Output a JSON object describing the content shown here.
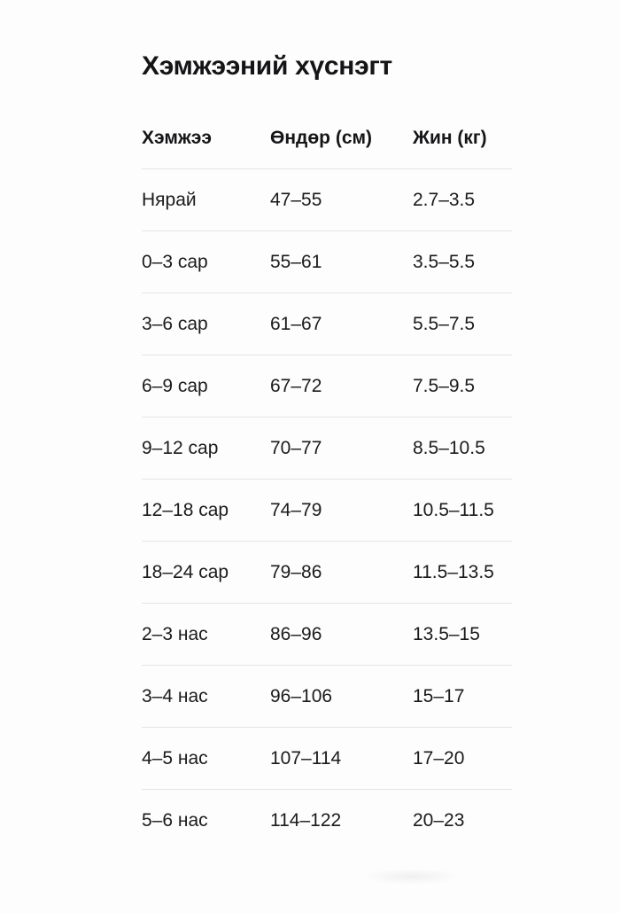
{
  "page": {
    "title": "Хэмжээний хүснэгт"
  },
  "table": {
    "columns": [
      "Хэмжээ",
      "Өндөр (см)",
      "Жин (кг)"
    ],
    "rows": [
      [
        "Нярай",
        "47–55",
        "2.7–3.5"
      ],
      [
        "0–3 сар",
        "55–61",
        "3.5–5.5"
      ],
      [
        "3–6 сар",
        "61–67",
        "5.5–7.5"
      ],
      [
        "6–9 сар",
        "67–72",
        "7.5–9.5"
      ],
      [
        "9–12 сар",
        "70–77",
        "8.5–10.5"
      ],
      [
        "12–18 сар",
        "74–79",
        "10.5–11.5"
      ],
      [
        "18–24 сар",
        "79–86",
        "11.5–13.5"
      ],
      [
        "2–3 нас",
        "86–96",
        "13.5–15"
      ],
      [
        "3–4 нас",
        "96–106",
        "15–17"
      ],
      [
        "4–5 нас",
        "107–114",
        "17–20"
      ],
      [
        "5–6 нас",
        "114–122",
        "20–23"
      ]
    ]
  },
  "colors": {
    "text": "#1b1b1d",
    "divider": "#e5e5e7",
    "background": "#fdfdfd"
  }
}
